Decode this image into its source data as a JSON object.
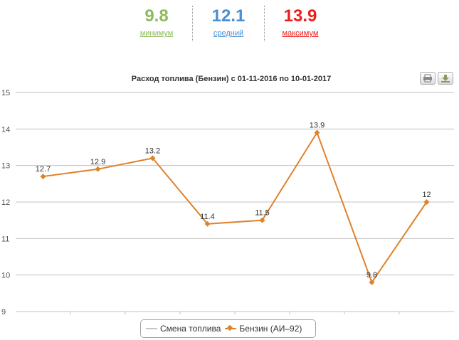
{
  "summary": {
    "min": {
      "value": "9.8",
      "label": "минимум",
      "color": "#8dbb5a"
    },
    "avg": {
      "value": "12.1",
      "label": "средний",
      "color": "#4a8fd4"
    },
    "max": {
      "value": "13.9",
      "label": "максимум",
      "color": "#ee1c1c"
    }
  },
  "toolbar": {
    "print_icon": "printer-icon",
    "export_icon": "download-icon"
  },
  "colors": {
    "series": "#e0822c",
    "fuel_change": "#c6c6c6",
    "grid": "#c0c0c0",
    "text": "#333333"
  },
  "chart_data": {
    "type": "line",
    "title": "Расход топлива (Бензин) с 01-11-2016 по 10-01-2017",
    "xlabel": "",
    "ylabel": "",
    "ylim": [
      9,
      15
    ],
    "yticks": [
      "15",
      "14",
      "13",
      "12",
      "11",
      "10",
      "9"
    ],
    "grid": true,
    "legend_position": "bottom-center",
    "series": [
      {
        "name": "Бензин (АИ–92)",
        "values": [
          12.7,
          12.9,
          13.2,
          11.4,
          11.5,
          13.9,
          9.8,
          12.0
        ],
        "labels": [
          "12.7",
          "12.9",
          "13.2",
          "11.4",
          "11.5",
          "13.9",
          "9.8",
          "12"
        ]
      }
    ],
    "legend": [
      {
        "name": "Смена топлива"
      },
      {
        "name": "Бензин (АИ–92)"
      }
    ]
  }
}
